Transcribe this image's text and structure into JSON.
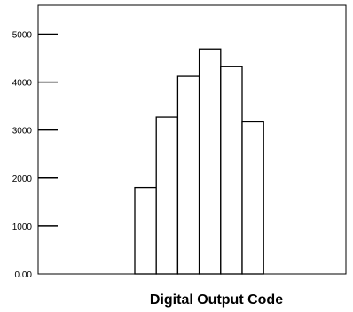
{
  "chart_data": {
    "type": "bar",
    "title": "",
    "xlabel": "Digital Output Code",
    "ylabel": "",
    "categories": [
      "",
      "",
      "",
      "",
      "",
      ""
    ],
    "values": [
      1800,
      3270,
      4120,
      4690,
      4320,
      3170
    ],
    "y_ticks": [
      {
        "value": 0,
        "label": "0.00"
      },
      {
        "value": 1000,
        "label": "1000"
      },
      {
        "value": 2000,
        "label": "2000"
      },
      {
        "value": 3000,
        "label": "3000"
      },
      {
        "value": 4000,
        "label": "4000"
      },
      {
        "value": 5000,
        "label": "5000"
      }
    ],
    "ylim": [
      0,
      5600
    ],
    "grid": false,
    "bar_fill": "#ffffff",
    "bar_stroke": "#000000"
  }
}
